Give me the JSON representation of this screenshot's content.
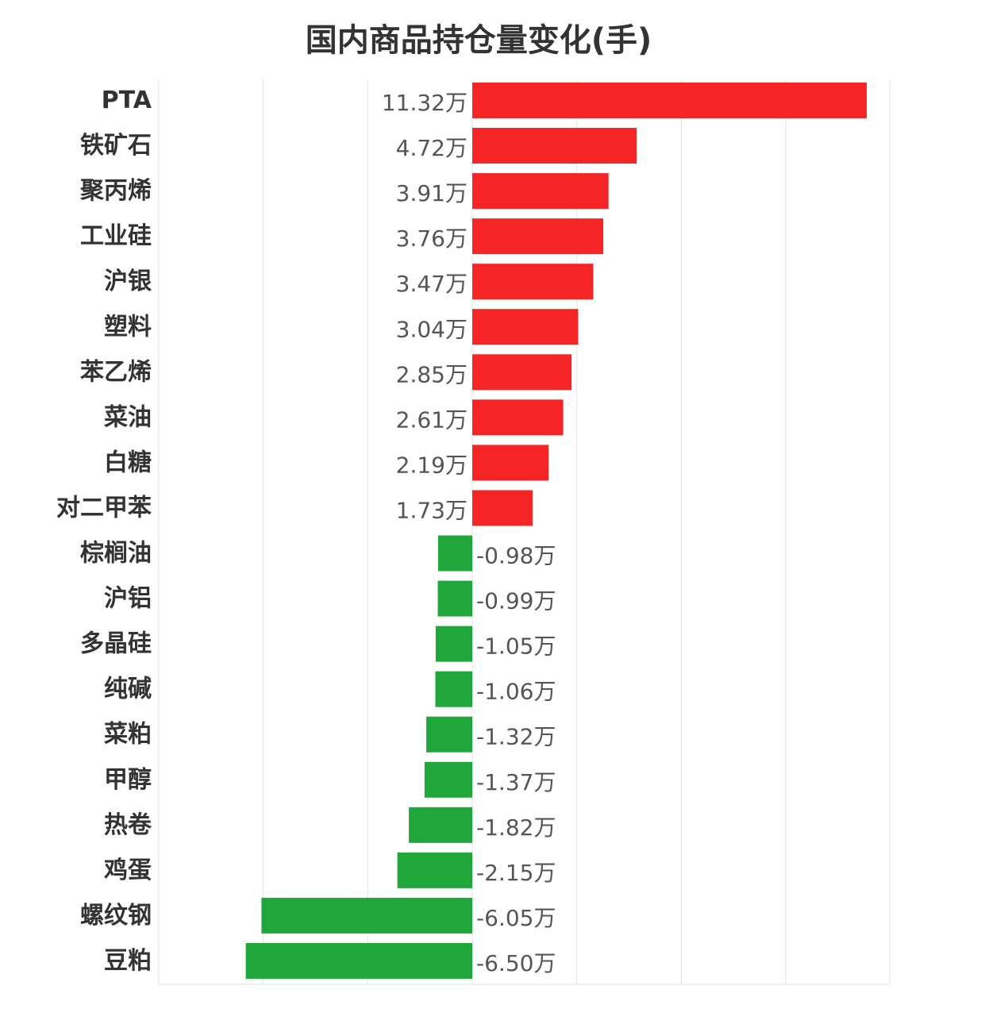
{
  "chart_data": {
    "type": "bar",
    "orientation": "horizontal",
    "title": "国内商品持仓量变化(手)",
    "xlabel": "",
    "ylabel": "",
    "xlim": [
      -9,
      10
    ],
    "grid": true,
    "colors": {
      "positive": "#f52525",
      "negative": "#20a73a"
    },
    "categories": [
      "PTA",
      "铁矿石",
      "聚丙烯",
      "工业硅",
      "沪银",
      "塑料",
      "苯乙烯",
      "菜油",
      "白糖",
      "对二甲苯",
      "棕榈油",
      "沪铝",
      "多晶硅",
      "纯碱",
      "菜粕",
      "甲醇",
      "热卷",
      "鸡蛋",
      "螺纹钢",
      "豆粕"
    ],
    "values": [
      11.32,
      4.72,
      3.91,
      3.76,
      3.47,
      3.04,
      2.85,
      2.61,
      2.19,
      1.73,
      -0.98,
      -0.99,
      -1.05,
      -1.06,
      -1.32,
      -1.37,
      -1.82,
      -2.15,
      -6.05,
      -6.5
    ],
    "value_labels": [
      "11.32万",
      "4.72万",
      "3.91万",
      "3.76万",
      "3.47万",
      "3.04万",
      "2.85万",
      "2.61万",
      "2.19万",
      "1.73万",
      "-0.98万",
      "-0.99万",
      "-1.05万",
      "-1.06万",
      "-1.32万",
      "-1.37万",
      "-1.82万",
      "-2.15万",
      "-6.05万",
      "-6.50万"
    ]
  }
}
